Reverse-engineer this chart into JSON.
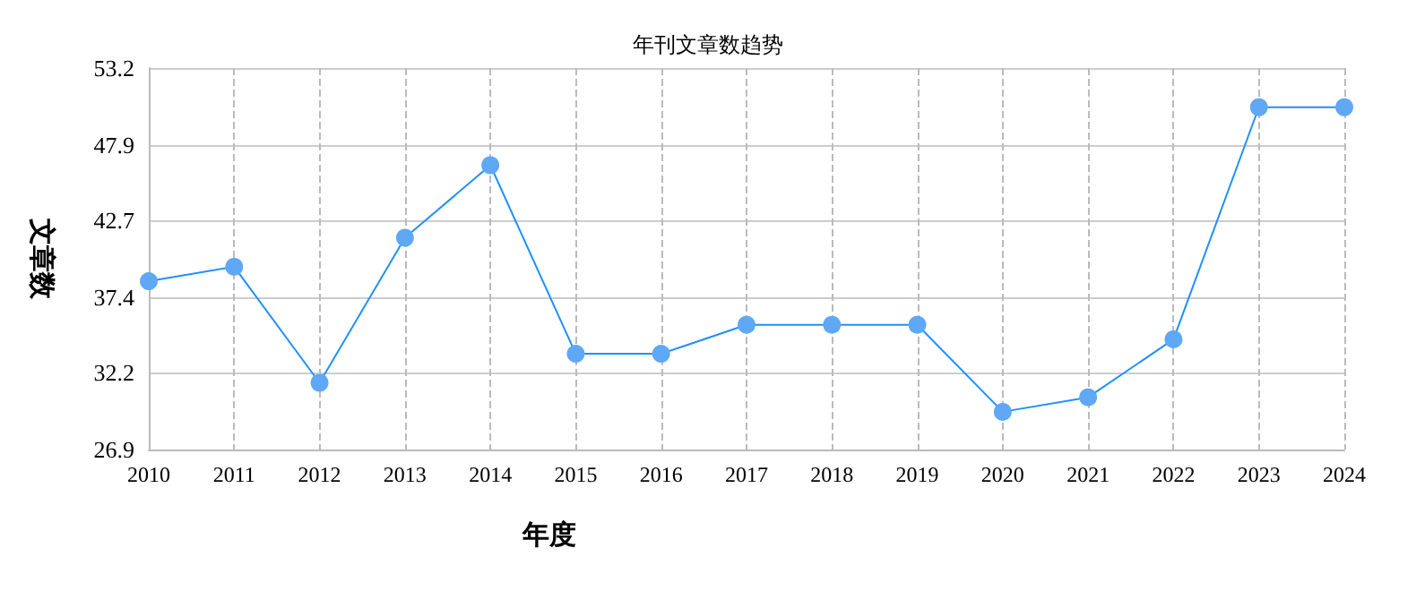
{
  "chart_data": {
    "type": "line",
    "title": "年刊文章数趋势",
    "xlabel": "年度",
    "ylabel": "文章数",
    "categories": [
      "2010",
      "2011",
      "2012",
      "2013",
      "2014",
      "2015",
      "2016",
      "2017",
      "2018",
      "2019",
      "2020",
      "2021",
      "2022",
      "2023",
      "2024"
    ],
    "series": [
      {
        "color": "#1e90ff",
        "values": [
          38.5,
          39.5,
          31.5,
          41.5,
          46.5,
          33.5,
          33.5,
          35.5,
          35.5,
          35.5,
          29.5,
          30.5,
          34.5,
          50.5,
          50.5
        ]
      }
    ],
    "ylim": [
      26.9,
      53.2
    ],
    "yticks": [
      26.9,
      32.2,
      37.4,
      42.7,
      47.9,
      53.2
    ],
    "grid": true,
    "marker": "circle",
    "line_style": "solid"
  }
}
